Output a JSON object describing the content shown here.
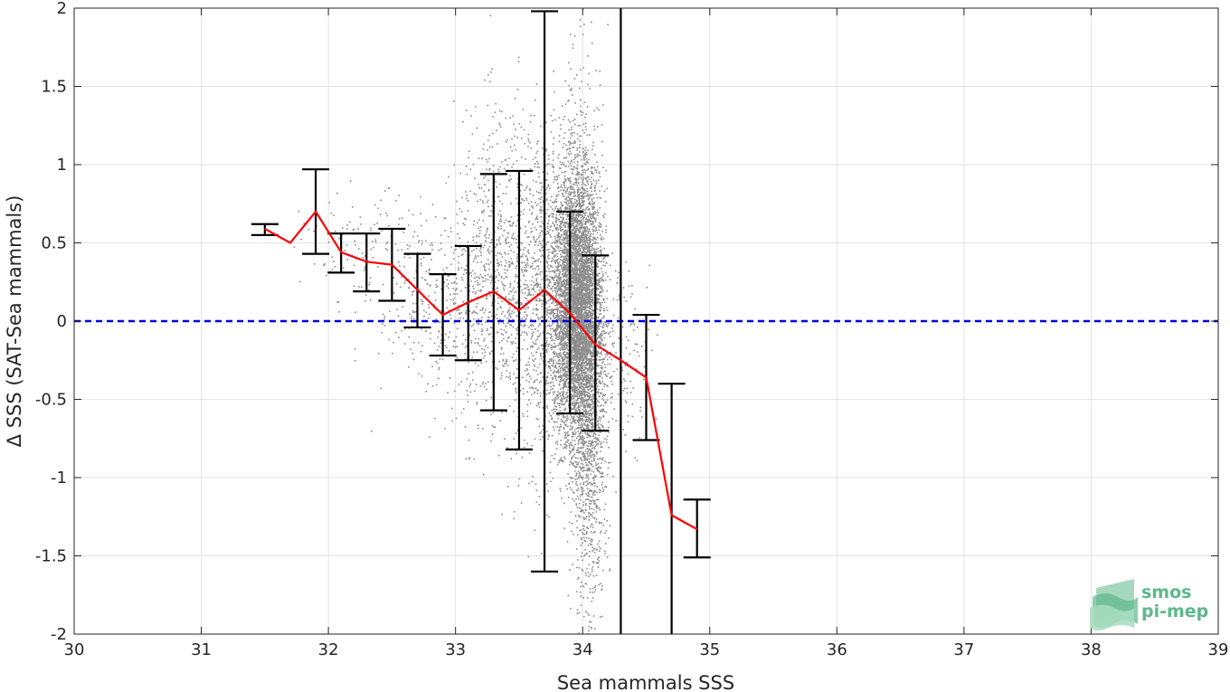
{
  "chart_data": {
    "type": "scatter",
    "title": "",
    "xlabel": "Sea mammals SSS",
    "ylabel": "Δ SSS (SAT-Sea mammals)",
    "xlim": [
      30,
      39
    ],
    "ylim": [
      -2,
      2
    ],
    "xticks": [
      30,
      31,
      32,
      33,
      34,
      35,
      36,
      37,
      38,
      39
    ],
    "yticks": [
      -2,
      -1.5,
      -1,
      -0.5,
      0,
      0.5,
      1,
      1.5,
      2
    ],
    "xtick_labels": [
      "30",
      "31",
      "32",
      "33",
      "34",
      "35",
      "36",
      "37",
      "38",
      "39"
    ],
    "ytick_labels": [
      "-2",
      "-1.5",
      "-1",
      "-0.5",
      "0",
      "0.5",
      "1",
      "1.5",
      "2"
    ],
    "grid": true,
    "zero_line": {
      "y": 0,
      "color": "#0000dd",
      "style": "dashed"
    },
    "scatter_color": "#8c8c8c",
    "mean_line_color": "#ff0000",
    "errorbar_color": "#000000",
    "mean_curve": {
      "x": [
        31.5,
        31.7,
        31.9,
        32.1,
        32.3,
        32.5,
        32.7,
        32.9,
        33.1,
        33.3,
        33.5,
        33.7,
        33.9,
        34.1,
        34.3,
        34.5,
        34.7,
        34.9
      ],
      "y": [
        0.59,
        0.5,
        0.7,
        0.44,
        0.38,
        0.36,
        0.2,
        0.04,
        0.12,
        0.19,
        0.07,
        0.2,
        0.05,
        -0.15,
        -0.25,
        -0.36,
        -1.24,
        -1.33
      ]
    },
    "errorbars": [
      {
        "x": 31.5,
        "low": 0.55,
        "high": 0.62
      },
      {
        "x": 31.9,
        "low": 0.43,
        "high": 0.97
      },
      {
        "x": 32.1,
        "low": 0.31,
        "high": 0.56
      },
      {
        "x": 32.3,
        "low": 0.19,
        "high": 0.56
      },
      {
        "x": 32.5,
        "low": 0.13,
        "high": 0.59
      },
      {
        "x": 32.7,
        "low": -0.04,
        "high": 0.43
      },
      {
        "x": 32.9,
        "low": -0.22,
        "high": 0.3
      },
      {
        "x": 33.1,
        "low": -0.25,
        "high": 0.48
      },
      {
        "x": 33.3,
        "low": -0.57,
        "high": 0.94
      },
      {
        "x": 33.5,
        "low": -0.82,
        "high": 0.96
      },
      {
        "x": 33.7,
        "low": -1.6,
        "high": 1.98
      },
      {
        "x": 33.9,
        "low": -0.59,
        "high": 0.7
      },
      {
        "x": 34.1,
        "low": -0.7,
        "high": 0.42
      },
      {
        "x": 34.3,
        "low": -2.3,
        "high": 2.3
      },
      {
        "x": 34.5,
        "low": -0.76,
        "high": 0.04
      },
      {
        "x": 34.7,
        "low": -2.3,
        "high": -0.4
      },
      {
        "x": 34.9,
        "low": -1.51,
        "high": -1.14
      }
    ],
    "scatter_clusters": [
      {
        "x": 33.95,
        "y": 0.1,
        "sx": 0.09,
        "sy": 0.42,
        "n": 5200
      },
      {
        "x": 34.05,
        "y": -0.35,
        "sx": 0.07,
        "sy": 0.55,
        "n": 1500
      },
      {
        "x": 33.7,
        "y": 0.15,
        "sx": 0.12,
        "sy": 0.55,
        "n": 900
      },
      {
        "x": 33.35,
        "y": 0.3,
        "sx": 0.18,
        "sy": 0.5,
        "n": 800
      },
      {
        "x": 32.9,
        "y": 0.1,
        "sx": 0.25,
        "sy": 0.3,
        "n": 350
      },
      {
        "x": 32.3,
        "y": 0.45,
        "sx": 0.25,
        "sy": 0.18,
        "n": 120
      },
      {
        "x": 34.35,
        "y": -0.2,
        "sx": 0.1,
        "sy": 0.3,
        "n": 120
      },
      {
        "x": 34.0,
        "y": 1.2,
        "sx": 0.08,
        "sy": 0.5,
        "n": 150
      },
      {
        "x": 34.05,
        "y": -1.5,
        "sx": 0.07,
        "sy": 0.3,
        "n": 150
      }
    ]
  },
  "logo": {
    "line1": "smos",
    "line2": "pi-mep",
    "color": "#5cb88a"
  }
}
